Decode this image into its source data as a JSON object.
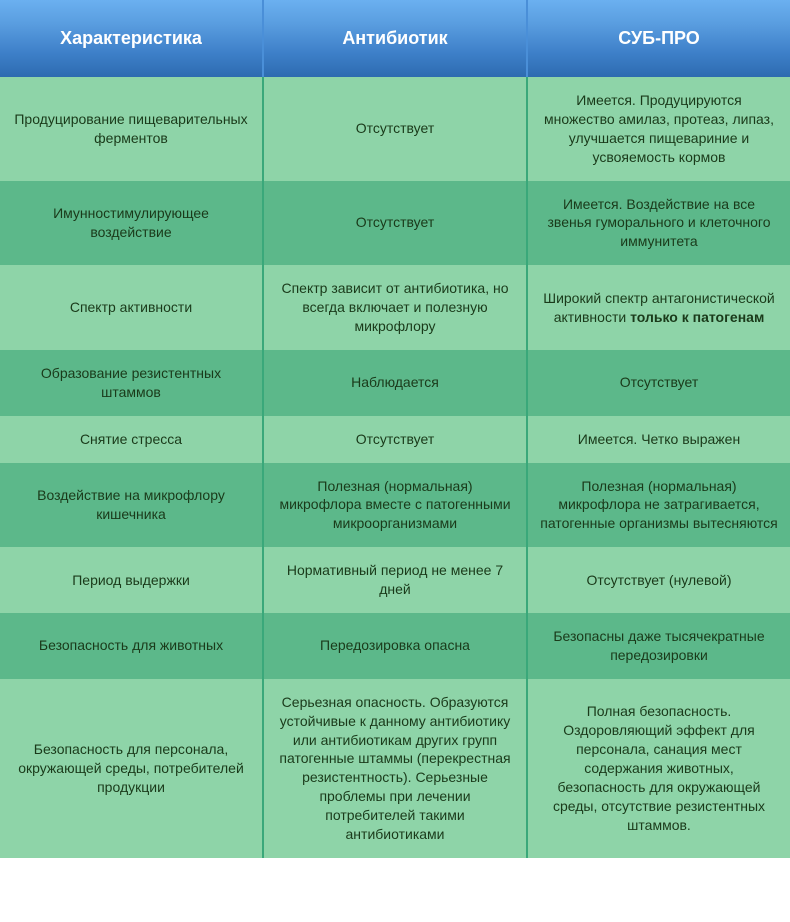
{
  "table": {
    "header_background_gradient": [
      "#6bb0f0",
      "#2d6bb0"
    ],
    "header_text_color": "#ffffff",
    "header_fontsize": 18,
    "cell_light_bg": "#8ed4a8",
    "cell_dark_bg": "#5cb88a",
    "cell_border_color": "#3aa87a",
    "cell_text_color": "#1a3a1a",
    "cell_fontsize": 14,
    "columns": [
      "Характеристика",
      "Антибиотик",
      "СУБ-ПРО"
    ],
    "rows": [
      {
        "shade": "light",
        "cells": [
          "Продуцирование пищеварительных ферментов",
          "Отсутствует",
          "Имеется. Продуцируются множество амилаз, протеаз, липаз, улучшается пищевариние и усвояемость кормов"
        ]
      },
      {
        "shade": "dark",
        "cells": [
          "Имунностимулирующее воздействие",
          "Отсутствует",
          "Имеется. Воздействие на все звенья гуморального и клеточного иммунитета"
        ]
      },
      {
        "shade": "light",
        "cells": [
          "Спектр активности",
          "Спектр зависит от антибиотика, но всегда включает и полезную микрофлору",
          "Широкий спектр антагонистической активности <b>только к патогенам</b>"
        ]
      },
      {
        "shade": "dark",
        "cells": [
          "Образование резистентных штаммов",
          "Наблюдается",
          "Отсутствует"
        ]
      },
      {
        "shade": "light",
        "cells": [
          "Снятие стресса",
          "Отсутствует",
          "Имеется. Четко выражен"
        ]
      },
      {
        "shade": "dark",
        "cells": [
          "Воздействие на микрофлору кишечника",
          "Полезная (нормальная) микрофлора вместе с патогенными микроорганизмами",
          "Полезная (нормальная) микрофлора не затрагивается, патогенные организмы вытесняются"
        ]
      },
      {
        "shade": "light",
        "cells": [
          "Период выдержки",
          "Нормативный период не менее 7 дней",
          "Отсутствует (нулевой)"
        ]
      },
      {
        "shade": "dark",
        "cells": [
          "Безопасность для животных",
          "Передозировка опасна",
          "Безопасны даже тысячекратные передозировки"
        ]
      },
      {
        "shade": "light",
        "cells": [
          "Безопасность для персонала, окружающей среды, потребителей продукции",
          "Серьезная опасность. Образуются устойчивые к данному антибиотику или антибиотикам других групп патогенные штаммы (перекрестная резистентность). Серьезные проблемы при лечении потребителей такими антибиотиками",
          "Полная безопасность. Оздоровляющий эффект для персонала, санация мест содержания животных, безопасность для окружающей среды, отсутствие резистентных штаммов."
        ]
      }
    ]
  }
}
